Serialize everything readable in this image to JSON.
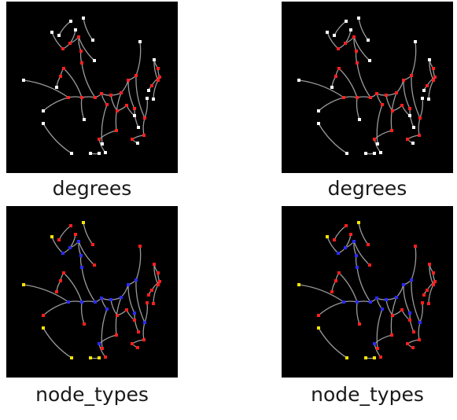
{
  "colors": {
    "background": "#000000",
    "edge": "#9a9a9a",
    "degree_leaf": "#ffffff",
    "degree_branch": "#ff2020",
    "type_endpoint": "#ff1f1f",
    "type_branch": "#2a2aff",
    "type_isolated": "#ffe600"
  },
  "panels": [
    {
      "caption": "degrees",
      "coloring": "degree"
    },
    {
      "caption": "degrees",
      "coloring": "degree"
    },
    {
      "caption": "node_types",
      "coloring": "type"
    },
    {
      "caption": "node_types",
      "coloring": "type"
    }
  ],
  "graph": {
    "edges": [
      [
        58,
        39,
        72,
        60
      ],
      [
        72,
        60,
        81,
        53
      ],
      [
        81,
        53,
        88,
        36
      ],
      [
        81,
        53,
        92,
        45
      ],
      [
        92,
        45,
        112,
        75
      ],
      [
        92,
        45,
        95,
        63
      ],
      [
        95,
        63,
        96,
        78
      ],
      [
        96,
        78,
        113,
        122
      ],
      [
        113,
        122,
        121,
        117
      ],
      [
        121,
        117,
        133,
        119
      ],
      [
        133,
        119,
        146,
        116
      ],
      [
        146,
        116,
        155,
        100
      ],
      [
        155,
        100,
        165,
        94
      ],
      [
        165,
        94,
        170,
        51
      ],
      [
        165,
        94,
        176,
        148
      ],
      [
        176,
        148,
        179,
        123
      ],
      [
        176,
        148,
        175,
        170
      ],
      [
        175,
        170,
        160,
        175
      ],
      [
        160,
        175,
        167,
        180
      ],
      [
        113,
        122,
        96,
        122
      ],
      [
        96,
        122,
        79,
        122
      ],
      [
        79,
        122,
        47,
        139
      ],
      [
        79,
        122,
        22,
        100
      ],
      [
        96,
        122,
        99,
        150
      ],
      [
        96,
        122,
        73,
        85
      ],
      [
        73,
        85,
        69,
        95
      ],
      [
        69,
        95,
        64,
        109
      ],
      [
        121,
        117,
        128,
        131
      ],
      [
        128,
        131,
        122,
        181
      ],
      [
        133,
        119,
        141,
        139
      ],
      [
        141,
        139,
        153,
        132
      ],
      [
        153,
        132,
        163,
        145
      ],
      [
        146,
        116,
        140,
        164
      ],
      [
        140,
        164,
        118,
        175
      ],
      [
        118,
        175,
        126,
        192
      ],
      [
        155,
        100,
        163,
        136
      ],
      [
        163,
        136,
        168,
        160
      ],
      [
        188,
        74,
        193,
        85
      ],
      [
        193,
        85,
        195,
        96
      ],
      [
        195,
        96,
        185,
        107
      ],
      [
        185,
        107,
        181,
        113
      ],
      [
        188,
        74,
        193,
        100
      ],
      [
        193,
        100,
        187,
        124
      ],
      [
        98,
        21,
        110,
        49
      ],
      [
        47,
        155,
        83,
        193
      ],
      [
        82,
        25,
        67,
        43
      ],
      [
        107,
        193,
        118,
        193
      ]
    ],
    "degree_nodes": [
      [
        58,
        39,
        "leaf"
      ],
      [
        72,
        60,
        "branch"
      ],
      [
        81,
        53,
        "branch"
      ],
      [
        88,
        36,
        "leaf"
      ],
      [
        92,
        45,
        "branch"
      ],
      [
        112,
        75,
        "leaf"
      ],
      [
        95,
        63,
        "branch"
      ],
      [
        96,
        78,
        "branch"
      ],
      [
        113,
        122,
        "branch"
      ],
      [
        121,
        117,
        "branch"
      ],
      [
        133,
        119,
        "branch"
      ],
      [
        146,
        116,
        "branch"
      ],
      [
        155,
        100,
        "branch"
      ],
      [
        165,
        94,
        "branch"
      ],
      [
        170,
        51,
        "leaf"
      ],
      [
        176,
        148,
        "branch"
      ],
      [
        179,
        123,
        "leaf"
      ],
      [
        175,
        170,
        "branch"
      ],
      [
        160,
        175,
        "branch"
      ],
      [
        167,
        180,
        "leaf"
      ],
      [
        96,
        122,
        "branch"
      ],
      [
        79,
        122,
        "branch"
      ],
      [
        47,
        139,
        "leaf"
      ],
      [
        22,
        100,
        "leaf"
      ],
      [
        99,
        150,
        "leaf"
      ],
      [
        73,
        85,
        "branch"
      ],
      [
        69,
        95,
        "branch"
      ],
      [
        64,
        109,
        "leaf"
      ],
      [
        128,
        131,
        "branch"
      ],
      [
        122,
        181,
        "leaf"
      ],
      [
        141,
        139,
        "branch"
      ],
      [
        153,
        132,
        "branch"
      ],
      [
        163,
        145,
        "leaf"
      ],
      [
        140,
        164,
        "branch"
      ],
      [
        118,
        175,
        "branch"
      ],
      [
        126,
        192,
        "leaf"
      ],
      [
        163,
        136,
        "branch"
      ],
      [
        168,
        160,
        "leaf"
      ],
      [
        188,
        74,
        "leaf"
      ],
      [
        193,
        85,
        "branch"
      ],
      [
        195,
        96,
        "branch"
      ],
      [
        185,
        107,
        "branch"
      ],
      [
        181,
        113,
        "leaf"
      ],
      [
        193,
        100,
        "branch"
      ],
      [
        187,
        124,
        "leaf"
      ],
      [
        98,
        21,
        "leaf"
      ],
      [
        110,
        49,
        "leaf"
      ],
      [
        47,
        155,
        "leaf"
      ],
      [
        83,
        193,
        "leaf"
      ],
      [
        82,
        25,
        "leaf"
      ],
      [
        67,
        43,
        "leaf"
      ],
      [
        107,
        193,
        "leaf"
      ],
      [
        118,
        193,
        "leaf"
      ]
    ],
    "type_nodes": [
      [
        58,
        39,
        "isolated"
      ],
      [
        72,
        60,
        "branch"
      ],
      [
        81,
        53,
        "branch"
      ],
      [
        88,
        36,
        "endpoint"
      ],
      [
        92,
        45,
        "branch"
      ],
      [
        112,
        75,
        "endpoint"
      ],
      [
        95,
        63,
        "branch"
      ],
      [
        96,
        78,
        "branch"
      ],
      [
        113,
        122,
        "branch"
      ],
      [
        121,
        117,
        "branch"
      ],
      [
        133,
        119,
        "branch"
      ],
      [
        146,
        116,
        "branch"
      ],
      [
        155,
        100,
        "branch"
      ],
      [
        165,
        94,
        "branch"
      ],
      [
        170,
        51,
        "endpoint"
      ],
      [
        176,
        148,
        "branch"
      ],
      [
        179,
        123,
        "endpoint"
      ],
      [
        175,
        170,
        "endpoint"
      ],
      [
        160,
        175,
        "endpoint"
      ],
      [
        167,
        180,
        "endpoint"
      ],
      [
        96,
        122,
        "branch"
      ],
      [
        79,
        122,
        "branch"
      ],
      [
        47,
        139,
        "endpoint"
      ],
      [
        22,
        100,
        "isolated"
      ],
      [
        99,
        150,
        "endpoint"
      ],
      [
        73,
        85,
        "endpoint"
      ],
      [
        69,
        95,
        "endpoint"
      ],
      [
        64,
        109,
        "endpoint"
      ],
      [
        128,
        131,
        "branch"
      ],
      [
        122,
        181,
        "endpoint"
      ],
      [
        141,
        139,
        "endpoint"
      ],
      [
        153,
        132,
        "endpoint"
      ],
      [
        163,
        145,
        "endpoint"
      ],
      [
        140,
        164,
        "endpoint"
      ],
      [
        118,
        175,
        "branch"
      ],
      [
        126,
        192,
        "endpoint"
      ],
      [
        163,
        136,
        "branch"
      ],
      [
        168,
        160,
        "endpoint"
      ],
      [
        188,
        74,
        "endpoint"
      ],
      [
        193,
        85,
        "endpoint"
      ],
      [
        195,
        96,
        "endpoint"
      ],
      [
        185,
        107,
        "endpoint"
      ],
      [
        181,
        113,
        "endpoint"
      ],
      [
        193,
        100,
        "endpoint"
      ],
      [
        187,
        124,
        "endpoint"
      ],
      [
        98,
        21,
        "isolated"
      ],
      [
        110,
        49,
        "endpoint"
      ],
      [
        47,
        155,
        "isolated"
      ],
      [
        83,
        193,
        "isolated"
      ],
      [
        82,
        25,
        "endpoint"
      ],
      [
        67,
        43,
        "endpoint"
      ],
      [
        107,
        193,
        "isolated"
      ],
      [
        118,
        193,
        "isolated"
      ]
    ]
  }
}
